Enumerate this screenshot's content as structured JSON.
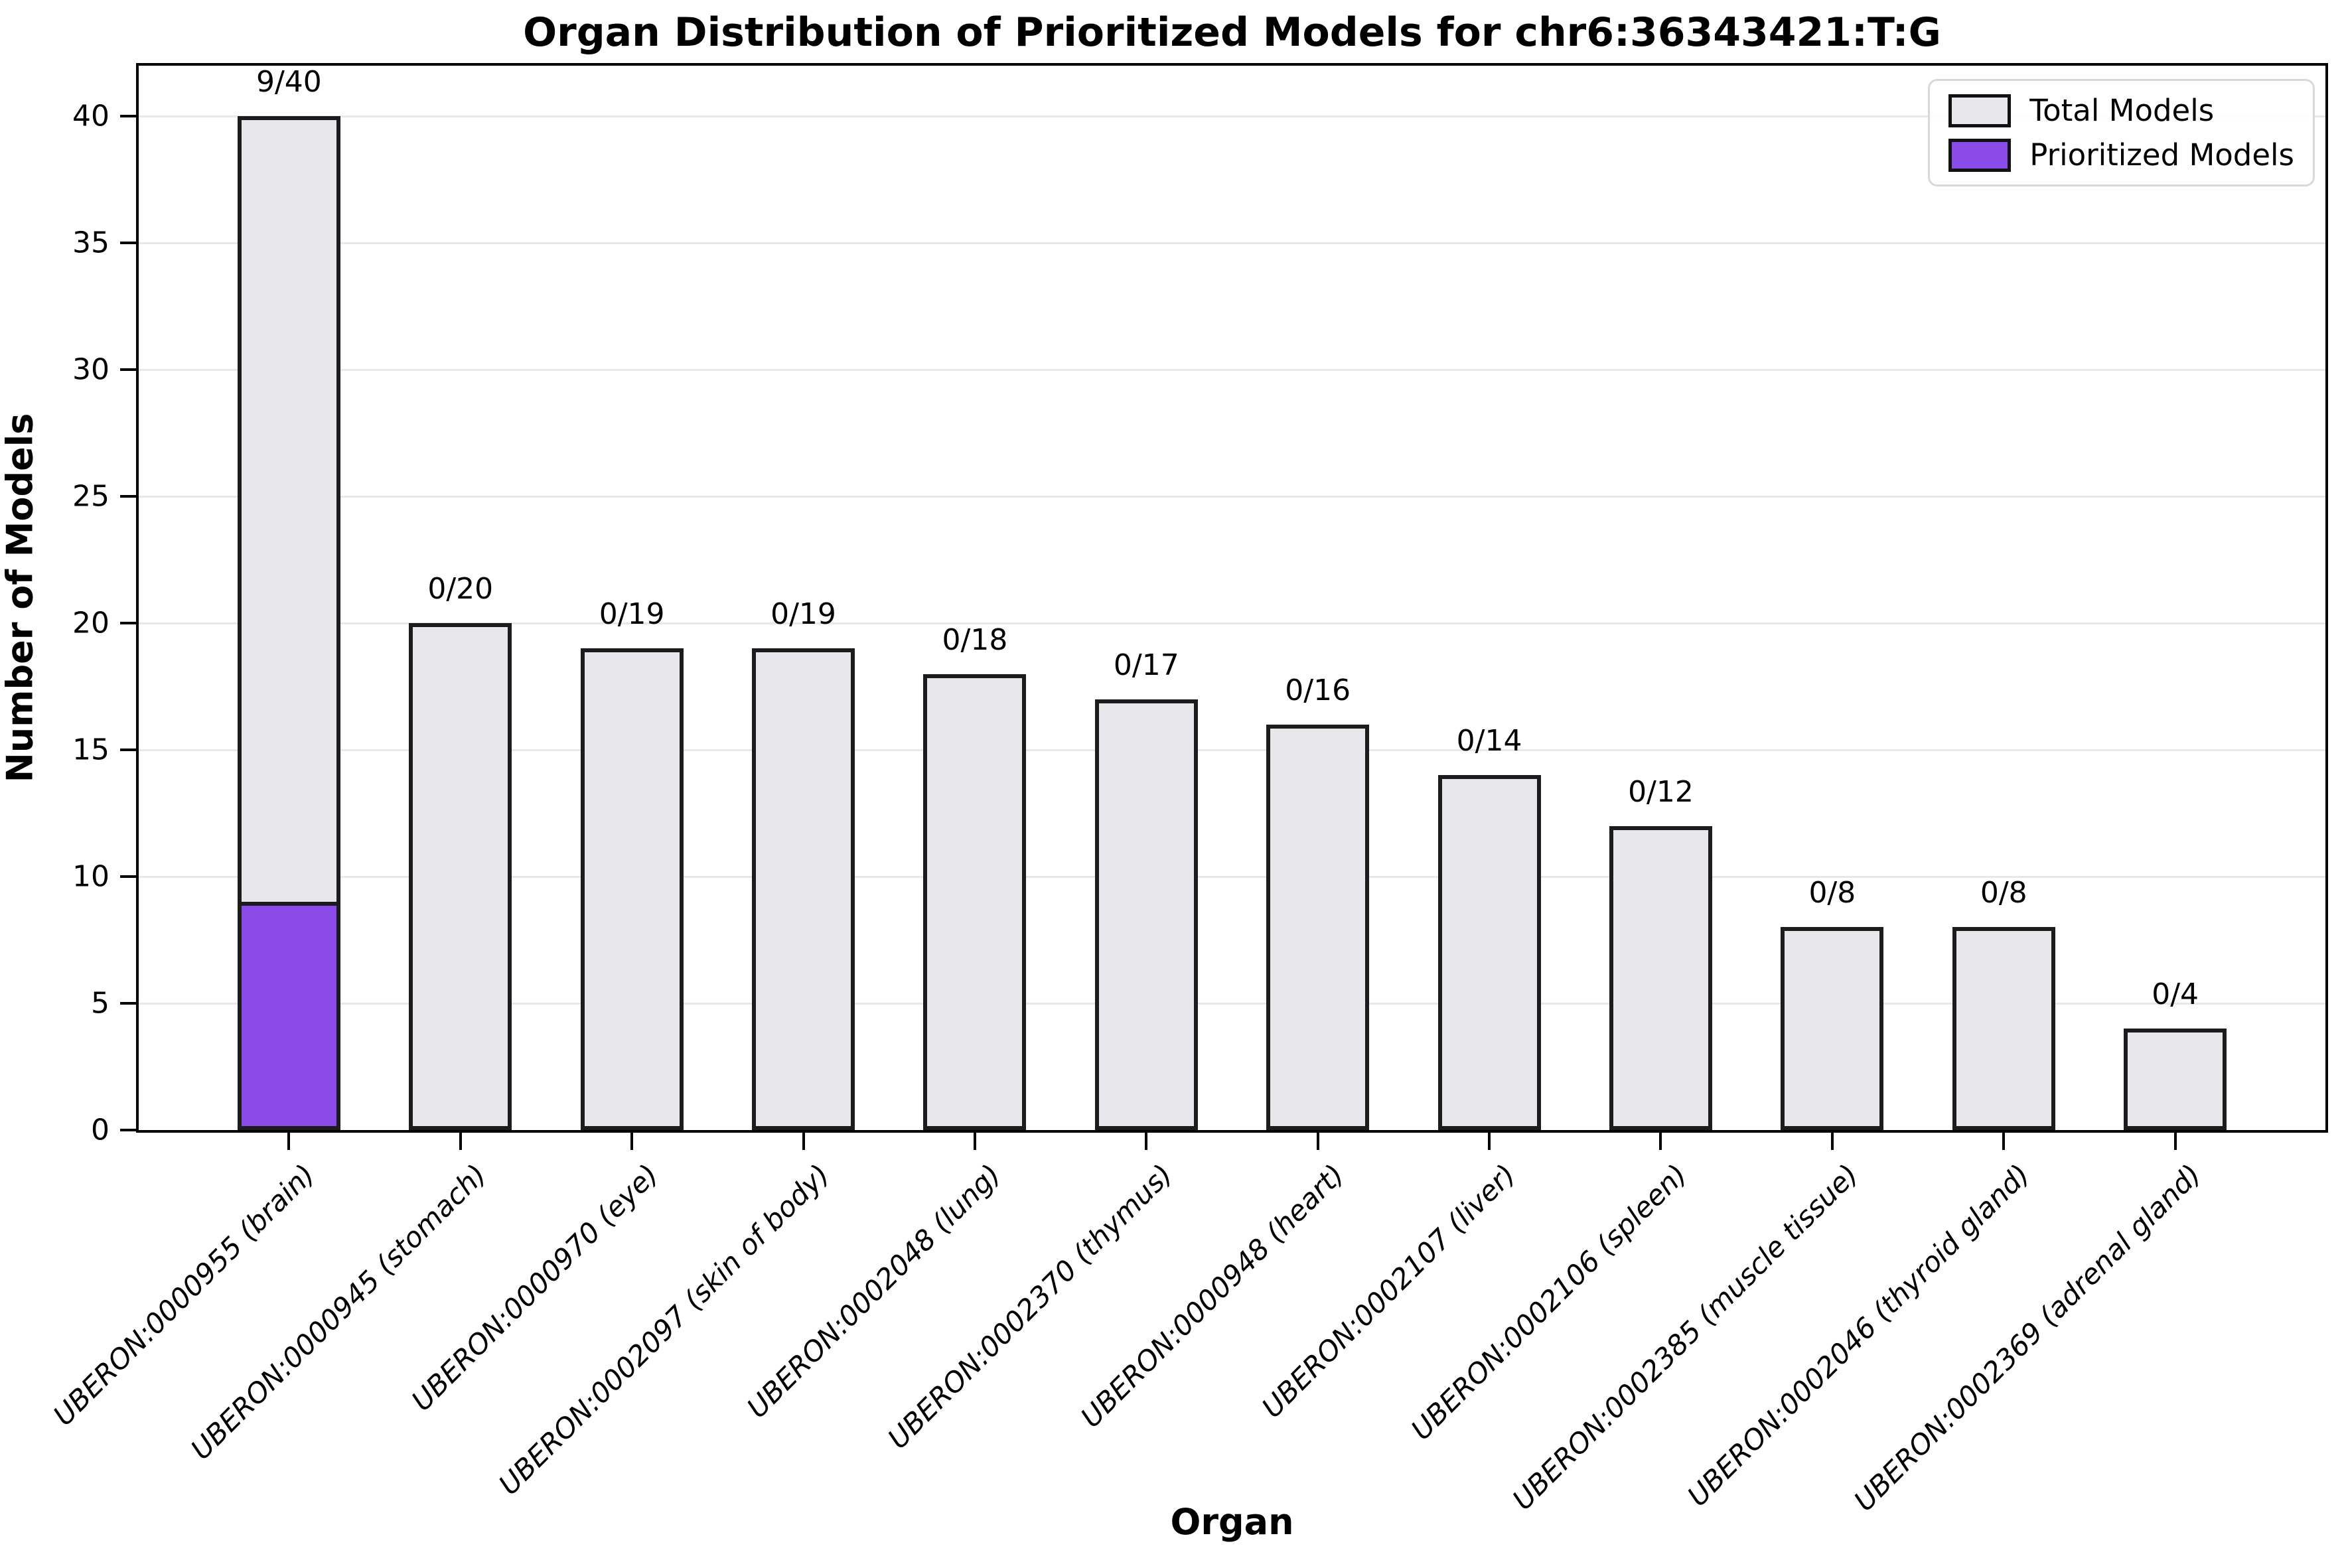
{
  "title": "Organ Distribution of Prioritized Models for chr6:36343421:T:G",
  "axes": {
    "x_label": "Organ",
    "y_label": "Number of Models",
    "y_ticks": [
      0,
      5,
      10,
      15,
      20,
      25,
      30,
      35,
      40
    ]
  },
  "legend": {
    "items": [
      {
        "label": "Total Models",
        "color": "#e8e8ec"
      },
      {
        "label": "Prioritized Models",
        "color": "#8a4be8"
      }
    ]
  },
  "colors": {
    "total_fill": "#e8e8ec",
    "prioritized_fill": "#8a4be8",
    "bar_edge": "#1c1c1c",
    "grid": "#e8e8ea",
    "spine": "#000000",
    "background": "#ffffff"
  },
  "chart_data": {
    "type": "bar",
    "title": "Organ Distribution of Prioritized Models for chr6:36343421:T:G",
    "xlabel": "Organ",
    "ylabel": "Number of Models",
    "ylim": [
      0,
      42
    ],
    "grid": true,
    "legend_position": "upper right",
    "categories": [
      "UBERON:0000955 (brain)",
      "UBERON:0000945 (stomach)",
      "UBERON:0000970 (eye)",
      "UBERON:0002097 (skin of body)",
      "UBERON:0002048 (lung)",
      "UBERON:0002370 (thymus)",
      "UBERON:0000948 (heart)",
      "UBERON:0002107 (liver)",
      "UBERON:0002106 (spleen)",
      "UBERON:0002385 (muscle tissue)",
      "UBERON:0002046 (thyroid gland)",
      "UBERON:0002369 (adrenal gland)"
    ],
    "series": [
      {
        "name": "Total Models",
        "values": [
          40,
          20,
          19,
          19,
          18,
          17,
          16,
          14,
          12,
          8,
          8,
          4
        ],
        "color": "#e8e8ec"
      },
      {
        "name": "Prioritized Models",
        "values": [
          9,
          0,
          0,
          0,
          0,
          0,
          0,
          0,
          0,
          0,
          0,
          0
        ],
        "color": "#8a4be8"
      }
    ],
    "annotations": [
      "9/40",
      "0/20",
      "0/19",
      "0/19",
      "0/18",
      "0/17",
      "0/16",
      "0/14",
      "0/12",
      "0/8",
      "0/8",
      "0/4"
    ]
  }
}
